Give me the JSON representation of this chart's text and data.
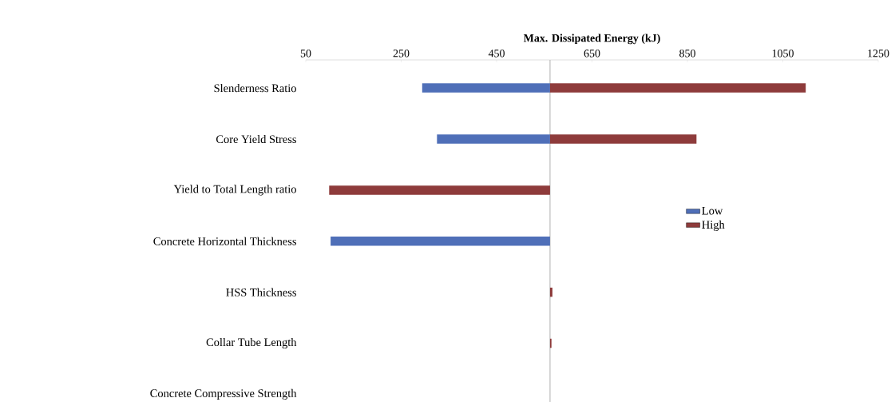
{
  "chart_data": {
    "type": "bar",
    "orientation": "horizontal",
    "xlabel": "Max. Dissipated Energy (kJ)",
    "categories": [
      "Slenderness Ratio",
      "Core Yield Stress",
      "Yield to Total Length ratio",
      "Concrete Horizontal Thickness",
      "HSS Thickness",
      "Collar Tube Length",
      "Concrete Compressive Strength"
    ],
    "series": [
      {
        "name": "Low",
        "color": "#4f6fb8",
        "base": [
          562,
          562,
          null,
          562,
          null,
          null,
          null
        ],
        "values": [
          -268,
          -237,
          null,
          -460,
          null,
          null,
          null
        ]
      },
      {
        "name": "High",
        "color": "#8e3b3b",
        "base": [
          562,
          562,
          562,
          null,
          562,
          562,
          null
        ],
        "values": [
          536,
          307,
          -463,
          null,
          5,
          3,
          null
        ]
      }
    ],
    "xlim": [
      50,
      1250
    ],
    "xticks": [
      50,
      250,
      450,
      650,
      850,
      1050,
      1250
    ],
    "ref_lines": [
      {
        "axis": "x",
        "value": 562,
        "color": "#b0b0b0"
      }
    ],
    "legend": "right",
    "grid": false
  }
}
